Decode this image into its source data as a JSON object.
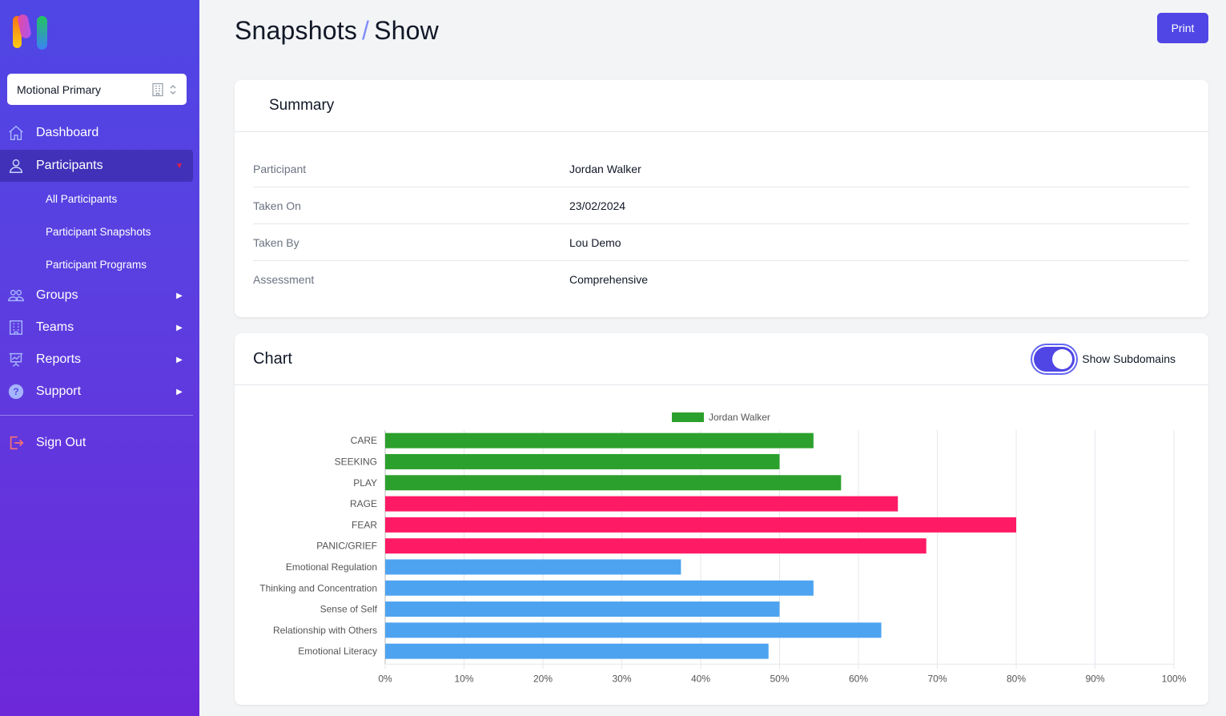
{
  "sidebar": {
    "org_select": {
      "value": "Motional Primary"
    },
    "nav": [
      {
        "label": "Dashboard",
        "icon": "home-icon"
      },
      {
        "label": "Participants",
        "icon": "user-icon"
      },
      {
        "label": "Groups",
        "icon": "users-icon"
      },
      {
        "label": "Teams",
        "icon": "building-icon"
      },
      {
        "label": "Reports",
        "icon": "presentation-chart-icon"
      },
      {
        "label": "Support",
        "icon": "question-icon"
      }
    ],
    "sub_items": [
      "All Participants",
      "Participant Snapshots",
      "Participant Programs"
    ],
    "sign_out": "Sign Out"
  },
  "header": {
    "breadcrumb_parent": "Snapshots",
    "separator": "/",
    "breadcrumb_current": "Show",
    "print_label": "Print"
  },
  "summary": {
    "title": "Summary",
    "rows": [
      {
        "label": "Participant",
        "value": "Jordan Walker"
      },
      {
        "label": "Taken On",
        "value": "23/02/2024"
      },
      {
        "label": "Taken By",
        "value": "Lou Demo"
      },
      {
        "label": "Assessment",
        "value": "Comprehensive"
      }
    ]
  },
  "chart_section": {
    "title": "Chart",
    "toggle_label": "Show Subdomains",
    "toggle_on": true
  },
  "colors": {
    "accent": "#4f46e5",
    "green": "#2ca02c",
    "pink": "#ff1a66",
    "blue": "#4da3f0"
  },
  "chart_data": {
    "type": "bar",
    "orientation": "horizontal",
    "legend": "top-center",
    "series": [
      {
        "name": "Jordan Walker",
        "values": [
          54.3,
          50.0,
          57.8,
          65.0,
          80.0,
          68.6,
          37.5,
          54.3,
          50.0,
          62.9,
          48.6
        ],
        "colors": [
          "#2ca02c",
          "#2ca02c",
          "#2ca02c",
          "#ff1a66",
          "#ff1a66",
          "#ff1a66",
          "#4da3f0",
          "#4da3f0",
          "#4da3f0",
          "#4da3f0",
          "#4da3f0"
        ]
      }
    ],
    "categories": [
      "CARE",
      "SEEKING",
      "PLAY",
      "RAGE",
      "FEAR",
      "PANIC/GRIEF",
      "Emotional Regulation",
      "Thinking and Concentration",
      "Sense of Self",
      "Relationship with Others",
      "Emotional Literacy"
    ],
    "xlim": [
      0,
      100
    ],
    "xticks": [
      "0%",
      "10%",
      "20%",
      "30%",
      "40%",
      "50%",
      "60%",
      "70%",
      "80%",
      "90%",
      "100%"
    ],
    "grid": true
  }
}
